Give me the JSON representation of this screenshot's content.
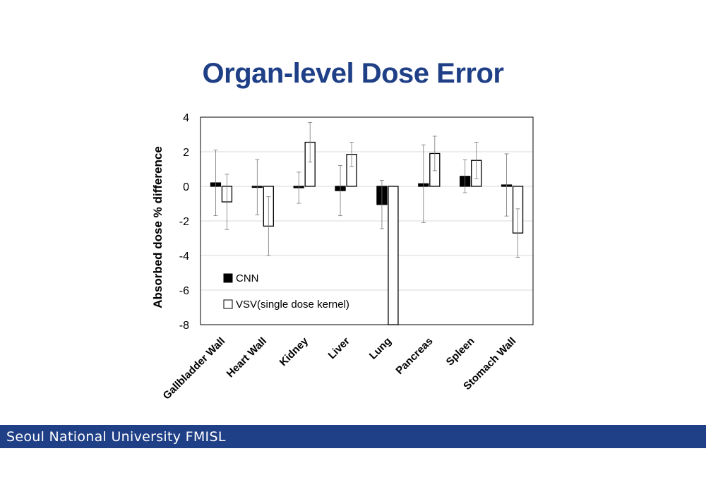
{
  "slide": {
    "title": "Organ-level Dose Error",
    "footer": "Seoul National University FMISL",
    "accent_color": "#1f3f86"
  },
  "chart_data": {
    "type": "bar",
    "title": "",
    "xlabel": "",
    "ylabel": "Absorbed dose % difference",
    "ylim": [
      -8,
      4
    ],
    "yticks": [
      4,
      2,
      0,
      -2,
      -4,
      -6,
      -8
    ],
    "grid": true,
    "legend_position": "bottom-left",
    "categories": [
      "Gallbladder Wall",
      "Heart Wall",
      "Kidney",
      "Liver",
      "Lung",
      "Pancreas",
      "Spleen",
      "Stomach Wall"
    ],
    "series": [
      {
        "name": "CNN",
        "fill": "#000000",
        "values": [
          0.2,
          -0.05,
          -0.08,
          -0.25,
          -1.05,
          0.15,
          0.58,
          0.08
        ],
        "error": [
          1.9,
          1.6,
          0.9,
          1.45,
          1.4,
          2.25,
          0.95,
          1.8
        ]
      },
      {
        "name": "VSV(single dose kernel)",
        "fill": "#ffffff",
        "values": [
          -0.9,
          -2.3,
          2.55,
          1.85,
          -8.0,
          1.9,
          1.5,
          -2.7
        ],
        "error": [
          1.6,
          1.7,
          1.15,
          0.7,
          0,
          1.0,
          1.05,
          1.4
        ]
      }
    ]
  }
}
